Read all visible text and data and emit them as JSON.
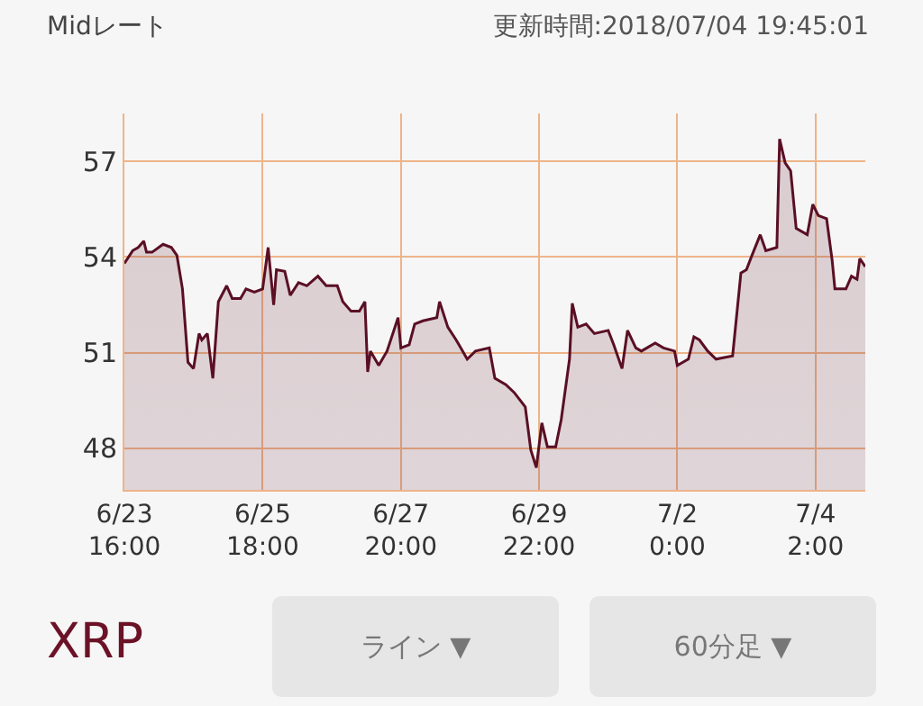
{
  "chart_data": {
    "type": "area",
    "annotations": [
      "Midレート",
      "更新時間:2018/07/04 19:45:01",
      "XRP",
      "ライン ▼",
      "60分足 ▼"
    ],
    "x": [
      "2018-06-23T16:00",
      "2018-06-23T19:00",
      "2018-06-23T21:00",
      "2018-06-23T23:00",
      "2018-06-24T00:00",
      "2018-06-24T02:00",
      "2018-06-24T06:00",
      "2018-06-24T09:00",
      "2018-06-24T11:00",
      "2018-06-24T13:00",
      "2018-06-24T15:00",
      "2018-06-24T17:00",
      "2018-06-24T19:00",
      "2018-06-24T20:00",
      "2018-06-24T22:00",
      "2018-06-25T00:00",
      "2018-06-25T02:00",
      "2018-06-25T05:00",
      "2018-06-25T07:00",
      "2018-06-25T10:00",
      "2018-06-25T12:00",
      "2018-06-25T15:00",
      "2018-06-25T18:00",
      "2018-06-25T20:00",
      "2018-06-25T22:00",
      "2018-06-25T23:00",
      "2018-06-26T02:00",
      "2018-06-26T04:00",
      "2018-06-26T07:00",
      "2018-06-26T10:00",
      "2018-06-26T14:00",
      "2018-06-26T17:00",
      "2018-06-26T21:00",
      "2018-06-26T23:00",
      "2018-06-27T02:00",
      "2018-06-27T05:00",
      "2018-06-27T07:00",
      "2018-06-27T08:00",
      "2018-06-27T09:00",
      "2018-06-27T12:00",
      "2018-06-27T15:00",
      "2018-06-27T19:00",
      "2018-06-27T20:00",
      "2018-06-27T23:00",
      "2018-06-28T01:00",
      "2018-06-28T04:00",
      "2018-06-28T09:00",
      "2018-06-28T10:00",
      "2018-06-28T13:00",
      "2018-06-28T16:00",
      "2018-06-28T20:00",
      "2018-06-28T23:00",
      "2018-06-29T04:00",
      "2018-06-29T06:00",
      "2018-06-29T10:00",
      "2018-06-29T13:00",
      "2018-06-29T17:00",
      "2018-06-29T19:00",
      "2018-06-29T21:00",
      "2018-06-29T23:00",
      "2018-06-30T01:00",
      "2018-06-30T04:00",
      "2018-06-30T06:00",
      "2018-06-30T09:00",
      "2018-06-30T10:00",
      "2018-06-30T12:00",
      "2018-06-30T15:00",
      "2018-06-30T18:00",
      "2018-06-30T23:00",
      "2018-07-01T01:00",
      "2018-07-01T04:00",
      "2018-07-01T06:00",
      "2018-07-01T09:00",
      "2018-07-01T11:00",
      "2018-07-01T16:00",
      "2018-07-01T19:00",
      "2018-07-01T23:00",
      "2018-07-02T00:00",
      "2018-07-02T04:00",
      "2018-07-02T06:00",
      "2018-07-02T08:00",
      "2018-07-02T11:00",
      "2018-07-02T14:00",
      "2018-07-02T20:00",
      "2018-07-02T23:00",
      "2018-07-03T01:00",
      "2018-07-03T03:00",
      "2018-07-03T06:00",
      "2018-07-03T08:00",
      "2018-07-03T12:00",
      "2018-07-03T13:00",
      "2018-07-03T15:00",
      "2018-07-03T17:00",
      "2018-07-03T19:00",
      "2018-07-03T23:00",
      "2018-07-04T01:00",
      "2018-07-04T03:00",
      "2018-07-04T06:00",
      "2018-07-04T08:00",
      "2018-07-04T09:00",
      "2018-07-04T13:00",
      "2018-07-04T15:00",
      "2018-07-04T17:00",
      "2018-07-04T18:00",
      "2018-07-04T20:00"
    ],
    "series": [
      {
        "color": "#5a0f24",
        "values": [
          53.8,
          54.2,
          54.3,
          54.5,
          54.15,
          54.15,
          54.4,
          54.3,
          54.05,
          53.0,
          50.7,
          50.5,
          51.6,
          51.4,
          51.6,
          50.2,
          52.6,
          53.1,
          52.7,
          52.7,
          53.0,
          52.9,
          53.0,
          54.3,
          52.5,
          53.6,
          53.55,
          52.8,
          53.2,
          53.1,
          53.4,
          53.1,
          53.1,
          52.6,
          52.3,
          52.3,
          52.6,
          50.4,
          51.05,
          50.6,
          51.05,
          52.1,
          51.15,
          51.25,
          51.9,
          52.0,
          52.1,
          52.6,
          51.8,
          51.4,
          50.8,
          51.05,
          51.15,
          50.2,
          50.0,
          49.75,
          49.3,
          47.95,
          47.4,
          48.8,
          48.05,
          48.05,
          48.9,
          50.8,
          52.55,
          51.8,
          51.9,
          51.6,
          51.7,
          51.25,
          50.5,
          51.7,
          51.15,
          51.05,
          51.3,
          51.15,
          51.05,
          50.6,
          50.8,
          51.5,
          51.4,
          51.05,
          50.8,
          50.9,
          53.5,
          53.6,
          54.05,
          54.7,
          54.2,
          54.3,
          57.7,
          56.95,
          56.7,
          54.9,
          54.7,
          55.65,
          55.3,
          55.2,
          53.9,
          53.0,
          53.0,
          53.4,
          53.3,
          53.95,
          53.7
        ]
      }
    ],
    "xlim": [
      "2018-06-23T16:00",
      "2018-07-04T20:00"
    ],
    "xticks": [
      {
        "value": "2018-06-23T16:00",
        "label": "6/23\n16:00"
      },
      {
        "value": "2018-06-25T18:00",
        "label": "6/25\n18:00"
      },
      {
        "value": "2018-06-27T20:00",
        "label": "6/27\n20:00"
      },
      {
        "value": "2018-06-29T22:00",
        "label": "6/29\n22:00"
      },
      {
        "value": "2018-07-02T00:00",
        "label": "7/2\n0:00"
      },
      {
        "value": "2018-07-04T02:00",
        "label": "7/4\n2:00"
      }
    ],
    "ylim": [
      46.7,
      58.5
    ],
    "yticks": [
      48,
      51,
      54,
      57
    ],
    "grid": true,
    "line_style": "solid"
  }
}
